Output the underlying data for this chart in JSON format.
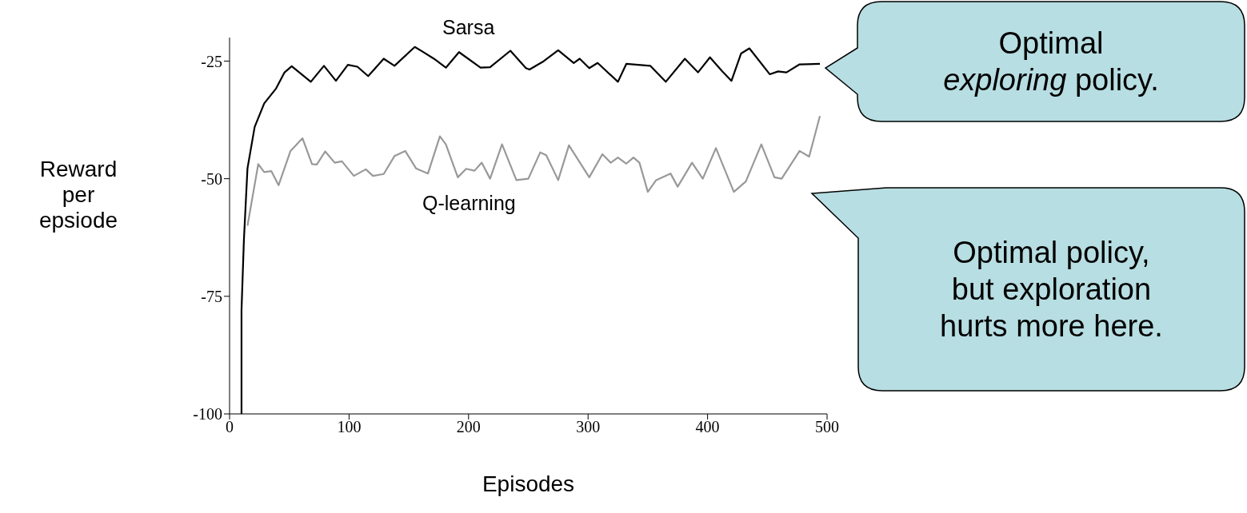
{
  "chart_data": {
    "type": "line",
    "xlabel": "Episodes",
    "ylabel": "Reward\nper\nepsiode",
    "xlim": [
      0,
      500
    ],
    "xticks": [
      0,
      100,
      200,
      300,
      400,
      500
    ],
    "ylim": [
      -100,
      -20
    ],
    "yticks": [
      -100,
      -75,
      -50,
      -25
    ],
    "series": [
      {
        "name": "Sarsa",
        "color": "#000000",
        "x": [
          10,
          10,
          12,
          15,
          21,
          29,
          39,
          46,
          52,
          68,
          79,
          89,
          99,
          107,
          116,
          129,
          138,
          155,
          161,
          171,
          181,
          192,
          210,
          218,
          235,
          248,
          251,
          263,
          275,
          288,
          293,
          301,
          308,
          325,
          332,
          352,
          365,
          381,
          392,
          402,
          412,
          420,
          428,
          435,
          452,
          459,
          466,
          477,
          494
        ],
        "values": [
          -100,
          -78,
          -63,
          -47.8,
          -39,
          -34,
          -30.8,
          -27.4,
          -26.1,
          -29.4,
          -26,
          -29.2,
          -25.8,
          -26.2,
          -28.2,
          -24.5,
          -26,
          -22,
          -22.9,
          -24.5,
          -26.4,
          -23.1,
          -26.4,
          -26.3,
          -22.8,
          -26.5,
          -26.8,
          -25,
          -22.7,
          -25.4,
          -24.5,
          -26.5,
          -25.4,
          -29.4,
          -25.6,
          -26,
          -29.4,
          -24.5,
          -27.4,
          -24.2,
          -27.1,
          -29.2,
          -23.4,
          -22.3,
          -27.8,
          -27.2,
          -27.4,
          -25.7,
          -25.6
        ]
      },
      {
        "name": "Q-learning",
        "color": "#999999",
        "x": [
          15,
          24,
          29,
          35,
          41,
          51,
          61,
          69,
          73,
          80,
          88,
          94,
          104,
          114,
          120,
          129,
          138,
          147,
          156,
          166,
          176,
          181,
          191,
          198,
          205,
          211,
          218,
          228,
          240,
          250,
          260,
          265,
          275,
          284,
          301,
          312,
          319,
          325,
          332,
          338,
          343,
          350,
          357,
          369,
          375,
          387,
          396,
          407,
          422,
          432,
          445,
          456,
          462,
          477,
          485,
          489,
          494
        ],
        "values": [
          -60,
          -46.9,
          -48.6,
          -48.4,
          -51.4,
          -44.1,
          -41.4,
          -46.9,
          -47,
          -44.2,
          -46.6,
          -46.3,
          -49.4,
          -48,
          -49.4,
          -49,
          -45.2,
          -44.1,
          -47.8,
          -48.9,
          -41,
          -42.7,
          -49.7,
          -47.9,
          -48.3,
          -46.6,
          -50,
          -42.7,
          -50.3,
          -50,
          -44.4,
          -45,
          -50.3,
          -42.9,
          -49.7,
          -44.8,
          -46.6,
          -45.5,
          -46.8,
          -45.5,
          -46.6,
          -52.8,
          -50.3,
          -48.9,
          -51.7,
          -46.6,
          -50,
          -43.5,
          -52.8,
          -50.6,
          -42.7,
          -49.7,
          -50,
          -44.1,
          -45.3,
          -41.5,
          -36.7
        ]
      }
    ],
    "annotations": [
      "Optimal\nexploring policy.",
      "Optimal policy,\nbut exploration\nhurts more here."
    ]
  }
}
